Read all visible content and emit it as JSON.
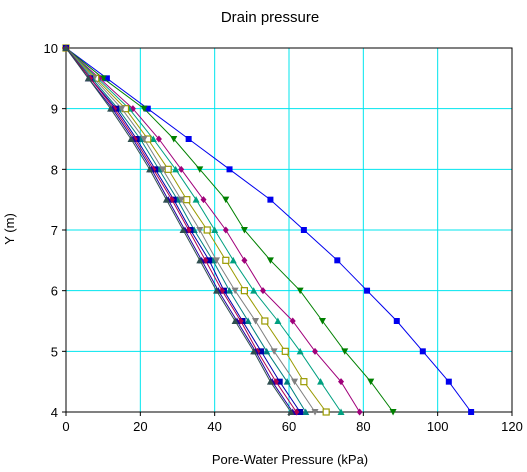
{
  "chart_data": {
    "type": "line",
    "title": "Drain pressure",
    "xlabel": "Pore-Water Pressure (kPa)",
    "ylabel": "Y (m)",
    "xlim": [
      0,
      120
    ],
    "ylim": [
      4,
      10
    ],
    "xticks": [
      0,
      20,
      40,
      60,
      80,
      100,
      120
    ],
    "yticks": [
      4,
      5,
      6,
      7,
      8,
      9,
      10
    ],
    "grid": true,
    "grid_color": "#00e5ee",
    "y": [
      10,
      9.5,
      9,
      8.5,
      8,
      7.5,
      7,
      6.5,
      6,
      5.5,
      5,
      4.5,
      4
    ],
    "series": [
      {
        "color": "#0000ee",
        "marker": "square",
        "values": [
          0,
          11,
          22,
          33,
          44,
          55,
          64,
          73,
          81,
          89,
          96,
          103,
          109
        ]
      },
      {
        "color": "#008000",
        "marker": "triangle-down",
        "values": [
          0,
          10,
          21,
          29,
          36,
          43,
          48,
          55,
          63,
          69,
          75,
          82,
          88
        ]
      },
      {
        "color": "#a0007a",
        "marker": "diamond",
        "values": [
          0,
          9,
          18,
          25,
          31,
          37,
          43,
          48,
          53,
          61,
          67,
          74,
          79
        ]
      },
      {
        "color": "#00a080",
        "marker": "triangle",
        "values": [
          0,
          8.5,
          17,
          23.5,
          29.5,
          35,
          40,
          45,
          50.5,
          57,
          63,
          68.5,
          74
        ]
      },
      {
        "color": "#9a9a00",
        "marker": "square-open",
        "values": [
          0,
          8,
          16,
          22,
          27.5,
          32.5,
          38,
          43,
          48,
          53.5,
          59,
          64,
          70
        ]
      },
      {
        "color": "#808080",
        "marker": "triangle-down",
        "values": [
          0,
          7.5,
          15,
          21,
          26,
          31,
          36,
          40.5,
          45.5,
          51,
          56,
          61.5,
          67
        ]
      },
      {
        "color": "#008080",
        "marker": "triangle",
        "values": [
          0,
          7,
          14,
          20,
          25,
          30,
          34.5,
          39.5,
          44,
          49,
          54,
          59.5,
          64.5
        ]
      },
      {
        "color": "#0000aa",
        "marker": "square",
        "values": [
          0,
          6.5,
          13.5,
          19,
          24,
          29,
          33.5,
          38.5,
          42.5,
          47.5,
          52.5,
          57.5,
          63
        ]
      },
      {
        "color": "#b00050",
        "marker": "diamond",
        "values": [
          0,
          6.5,
          13,
          18.5,
          23.5,
          28.5,
          33,
          37.5,
          42,
          47,
          51.5,
          56.5,
          62
        ]
      },
      {
        "color": "#2000a0",
        "marker": "triangle",
        "values": [
          0,
          6,
          12.5,
          18,
          23,
          27.5,
          32,
          36.5,
          41,
          46,
          51,
          55.5,
          61
        ]
      },
      {
        "color": "#2f4f4f",
        "marker": "triangle",
        "values": [
          0,
          6,
          12,
          17.5,
          22.5,
          27,
          31.5,
          36,
          40.5,
          45.5,
          50.5,
          55,
          60.5
        ]
      }
    ]
  }
}
